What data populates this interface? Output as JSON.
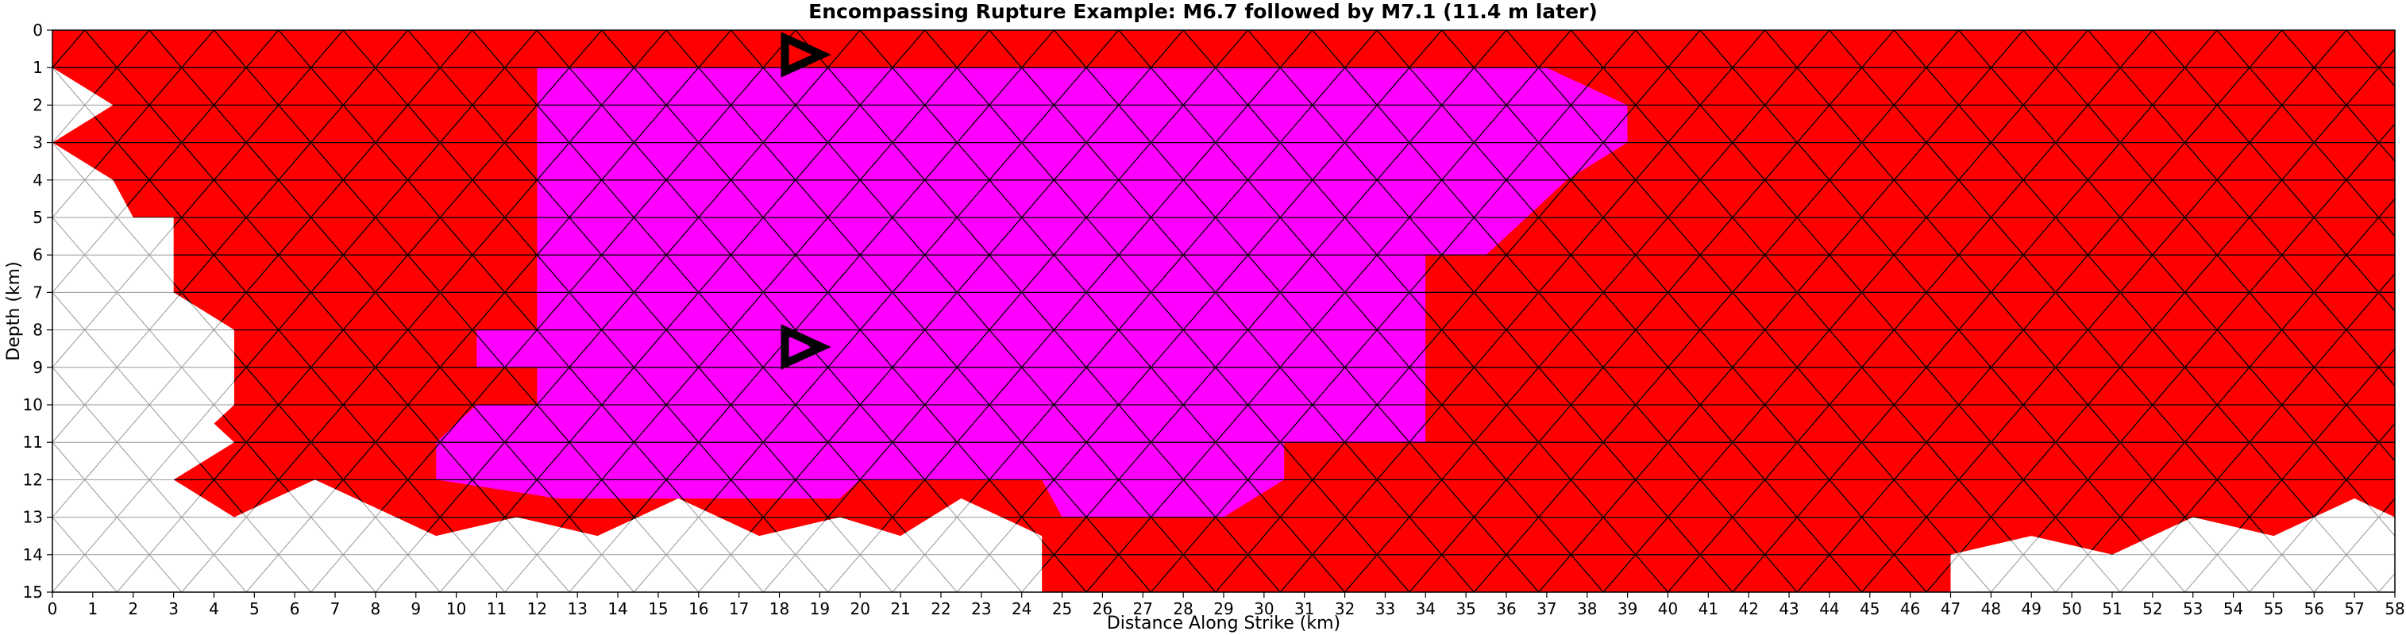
{
  "chart_data": {
    "type": "mesh",
    "title": "Encompassing Rupture Example: M6.7 followed by M7.1 (11.4 m later)",
    "xlabel": "Distance Along Strike (km)",
    "ylabel": "Depth (km)",
    "xlim": [
      0,
      58
    ],
    "ylim": [
      15,
      0
    ],
    "x_ticks": [
      0,
      1,
      2,
      3,
      4,
      5,
      6,
      7,
      8,
      9,
      10,
      11,
      12,
      13,
      14,
      15,
      16,
      17,
      18,
      19,
      20,
      21,
      22,
      23,
      24,
      25,
      26,
      27,
      28,
      29,
      30,
      31,
      32,
      33,
      34,
      35,
      36,
      37,
      38,
      39,
      40,
      41,
      42,
      43,
      44,
      45,
      46,
      47,
      48,
      49,
      50,
      51,
      52,
      53,
      54,
      55,
      56,
      57,
      58
    ],
    "y_ticks": [
      0,
      1,
      2,
      3,
      4,
      5,
      6,
      7,
      8,
      9,
      10,
      11,
      12,
      13,
      14,
      15
    ],
    "grid": false,
    "colors": {
      "first_rupture_m7_1": "#ff0000",
      "second_rupture_m6_7": "#ff00ff",
      "unruptured": "#ffffff",
      "edges_ruptured": "#000000",
      "edges_unruptured": "#999999",
      "hypocenter_marker": "#000000"
    },
    "mesh": {
      "element_width_km": 3.2,
      "element_height_km": 2.0,
      "magenta_region": [
        [
          12,
          1.0
        ],
        [
          37,
          1.0
        ],
        [
          39,
          2.0
        ],
        [
          39,
          3.0
        ],
        [
          37.5,
          4.0
        ],
        [
          35.5,
          6.0
        ],
        [
          34,
          6.0
        ],
        [
          34,
          11.0
        ],
        [
          30.5,
          11.0
        ],
        [
          30.5,
          12.0
        ],
        [
          29,
          13.0
        ],
        [
          25,
          13.0
        ],
        [
          24.5,
          12.0
        ],
        [
          20,
          12.0
        ],
        [
          19.5,
          12.5
        ],
        [
          12.5,
          12.5
        ],
        [
          9.5,
          12.0
        ],
        [
          9.5,
          11.0
        ],
        [
          10.5,
          10.0
        ],
        [
          12,
          10.0
        ],
        [
          12,
          9.0
        ],
        [
          10.5,
          9.0
        ],
        [
          10.5,
          8.0
        ],
        [
          12,
          8.0
        ]
      ],
      "red_region": [
        [
          0,
          0
        ],
        [
          58,
          0
        ],
        [
          58,
          13.0
        ],
        [
          57,
          12.5
        ],
        [
          55,
          13.5
        ],
        [
          53,
          13.0
        ],
        [
          51,
          14.0
        ],
        [
          49,
          13.5
        ],
        [
          47,
          14.0
        ],
        [
          47,
          15.0
        ],
        [
          24.5,
          15.0
        ],
        [
          24.5,
          13.5
        ],
        [
          22.5,
          12.5
        ],
        [
          21,
          13.5
        ],
        [
          19.5,
          13.0
        ],
        [
          17.5,
          13.5
        ],
        [
          15.5,
          12.5
        ],
        [
          13.5,
          13.5
        ],
        [
          11.5,
          13.0
        ],
        [
          9.5,
          13.5
        ],
        [
          6.5,
          12.0
        ],
        [
          4.5,
          13.0
        ],
        [
          3.0,
          12.0
        ],
        [
          4.5,
          11.0
        ],
        [
          4.0,
          10.5
        ],
        [
          4.5,
          10.0
        ],
        [
          4.5,
          8.0
        ],
        [
          3.0,
          7.0
        ],
        [
          3.0,
          5.0
        ],
        [
          2.0,
          5.0
        ],
        [
          1.5,
          4.0
        ],
        [
          0,
          3.0
        ],
        [
          1.5,
          2.0
        ],
        [
          0,
          1.0
        ]
      ],
      "unruptured_region": [
        [
          0,
          0
        ],
        [
          58,
          0
        ],
        [
          58,
          15.0
        ],
        [
          0,
          15.0
        ]
      ]
    },
    "hypocenters": [
      {
        "x": 18.5,
        "y": 1.1
      },
      {
        "x": 18.5,
        "y": 8.9
      }
    ]
  }
}
